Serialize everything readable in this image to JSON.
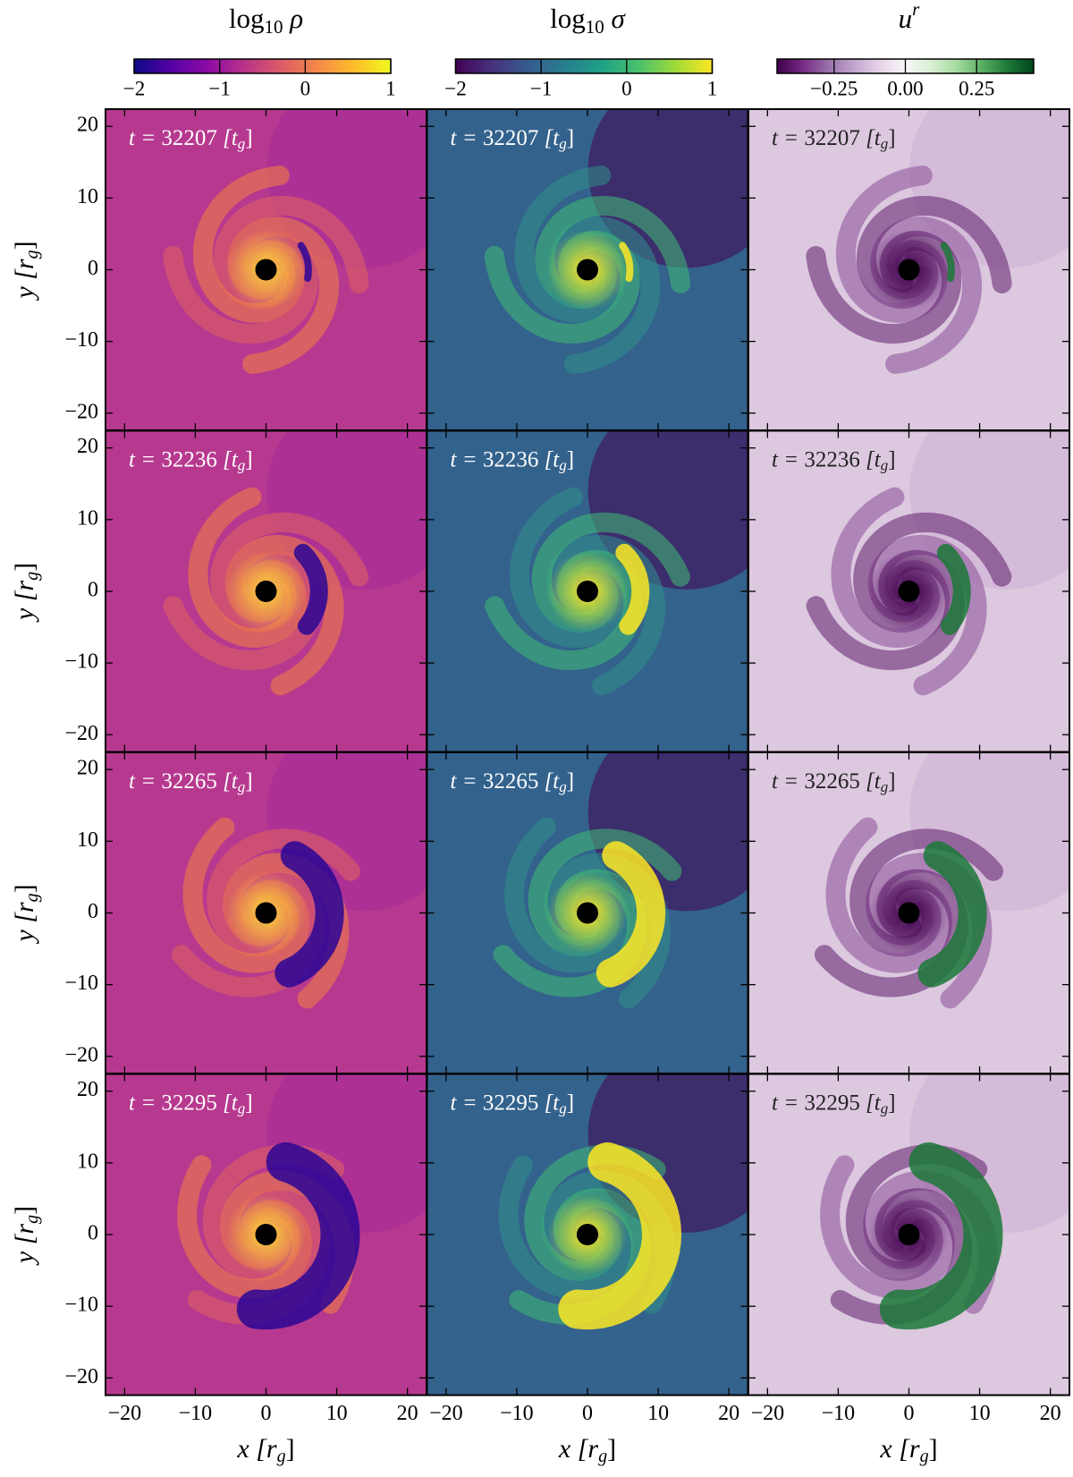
{
  "chart_data": {
    "type": "heatmap-grid",
    "columns": [
      {
        "title": {
          "main": "log",
          "sub": "10",
          "var": " ρ"
        },
        "colormap": "plasma",
        "clim": [
          -2,
          1
        ],
        "cticks": [
          {
            "value": -2,
            "label": "−2"
          },
          {
            "value": -1,
            "label": "−1"
          },
          0,
          1
        ]
      },
      {
        "title": {
          "main": "log",
          "sub": "10",
          "var": " σ"
        },
        "colormap": "viridis",
        "clim": [
          -2,
          1
        ],
        "cticks": [
          {
            "value": -2,
            "label": "−2"
          },
          {
            "value": -1,
            "label": "−1"
          },
          0,
          1
        ]
      },
      {
        "title": {
          "main": "u",
          "sup": "r"
        },
        "colormap": "PRGn",
        "clim": [
          -0.45,
          0.45
        ],
        "cticks": [
          {
            "value": -0.25,
            "label": "−0.25"
          },
          {
            "value": 0,
            "label": "0.00"
          },
          0.25
        ]
      }
    ],
    "times": [
      32207,
      32236,
      32265,
      32295
    ],
    "time_label": {
      "prefix": "t = ",
      "unit": " [t",
      "sub": "g",
      "close": "]"
    },
    "xlabel": {
      "main": "x [r",
      "sub": "g",
      "close": "]"
    },
    "ylabel": {
      "main": "y [r",
      "sub": "g",
      "close": "]"
    },
    "xlim": [
      -22.7,
      22.7
    ],
    "ylim": [
      -22.4,
      22.4
    ],
    "xticks": [
      {
        "value": -20,
        "label": "−20"
      },
      {
        "value": -10,
        "label": "−10"
      },
      0,
      10,
      20
    ],
    "yticks": [
      {
        "value": -20,
        "label": "−20"
      },
      {
        "value": -10,
        "label": "−10"
      },
      0,
      10,
      20
    ]
  }
}
